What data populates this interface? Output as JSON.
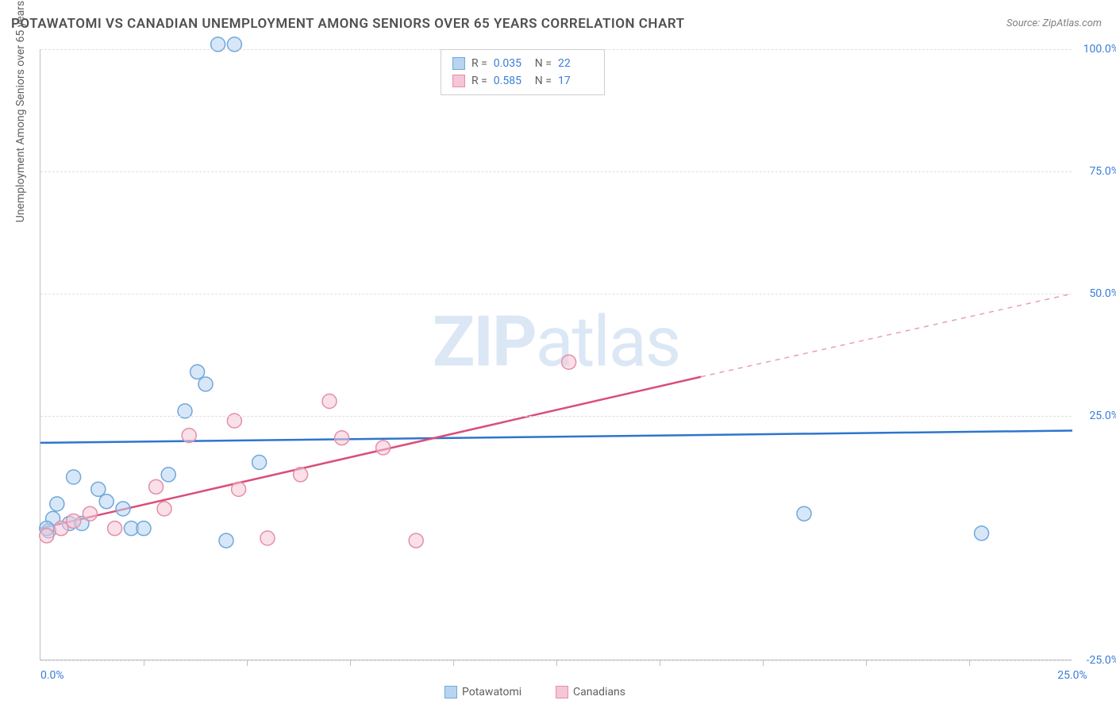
{
  "title": "POTAWATOMI VS CANADIAN UNEMPLOYMENT AMONG SENIORS OVER 65 YEARS CORRELATION CHART",
  "source": "Source: ZipAtlas.com",
  "yaxis_title": "Unemployment Among Seniors over 65 years",
  "watermark": {
    "bold": "ZIP",
    "light": "atlas"
  },
  "chart": {
    "type": "scatter-correlation",
    "xlim": [
      0,
      25
    ],
    "ylim": [
      -25,
      100
    ],
    "xticks": [
      0,
      25
    ],
    "xtick_minor": [
      2.5,
      5,
      7.5,
      10,
      12.5,
      15,
      17.5,
      20,
      22.5
    ],
    "ytick_labels": [
      "100.0%",
      "75.0%",
      "50.0%",
      "25.0%",
      "-25.0%"
    ],
    "ytick_values": [
      100,
      75,
      50,
      25,
      -25
    ],
    "xtick_labels": [
      "0.0%",
      "25.0%"
    ],
    "grid_color": "#e0e0e0",
    "axis_color": "#bfbfbf",
    "background_color": "#ffffff",
    "marker_radius": 9,
    "marker_stroke_width": 1.5,
    "line_width": 2.5,
    "series": [
      {
        "name": "Potawatomi",
        "color_fill": "#b8d4f0",
        "color_stroke": "#6fa8dc",
        "color_line": "#2e75cc",
        "R": "0.035",
        "N": "22",
        "trend": {
          "x1": 0,
          "y1": 19.5,
          "x2": 25,
          "y2": 22.0
        },
        "points": [
          {
            "x": 4.3,
            "y": 101
          },
          {
            "x": 4.7,
            "y": 101
          },
          {
            "x": 3.8,
            "y": 34
          },
          {
            "x": 4.0,
            "y": 31.5
          },
          {
            "x": 3.5,
            "y": 26
          },
          {
            "x": 5.3,
            "y": 15.5
          },
          {
            "x": 3.1,
            "y": 13
          },
          {
            "x": 0.8,
            "y": 12.5
          },
          {
            "x": 1.4,
            "y": 10
          },
          {
            "x": 0.4,
            "y": 7
          },
          {
            "x": 1.6,
            "y": 7.5
          },
          {
            "x": 2.0,
            "y": 6
          },
          {
            "x": 0.3,
            "y": 4
          },
          {
            "x": 0.7,
            "y": 3
          },
          {
            "x": 1.0,
            "y": 3
          },
          {
            "x": 0.2,
            "y": 1.5
          },
          {
            "x": 2.2,
            "y": 2
          },
          {
            "x": 2.5,
            "y": 2
          },
          {
            "x": 4.5,
            "y": -0.5
          },
          {
            "x": 18.5,
            "y": 5
          },
          {
            "x": 22.8,
            "y": 1
          },
          {
            "x": 0.15,
            "y": 2
          }
        ]
      },
      {
        "name": "Canadians",
        "color_fill": "#f5c6d6",
        "color_stroke": "#e38fa9",
        "color_line": "#d94f78",
        "R": "0.585",
        "N": "17",
        "trend": {
          "x1": 0,
          "y1": 2,
          "x2": 16,
          "y2": 33,
          "x_ext": 25,
          "y_ext": 50
        },
        "points": [
          {
            "x": 12.8,
            "y": 36
          },
          {
            "x": 7.0,
            "y": 28
          },
          {
            "x": 7.3,
            "y": 20.5
          },
          {
            "x": 4.7,
            "y": 24
          },
          {
            "x": 3.6,
            "y": 21
          },
          {
            "x": 8.3,
            "y": 18.5
          },
          {
            "x": 6.3,
            "y": 13
          },
          {
            "x": 4.8,
            "y": 10
          },
          {
            "x": 2.8,
            "y": 10.5
          },
          {
            "x": 3.0,
            "y": 6
          },
          {
            "x": 1.2,
            "y": 5
          },
          {
            "x": 0.8,
            "y": 3.5
          },
          {
            "x": 0.5,
            "y": 2
          },
          {
            "x": 0.15,
            "y": 0.5
          },
          {
            "x": 1.8,
            "y": 2
          },
          {
            "x": 5.5,
            "y": 0
          },
          {
            "x": 9.1,
            "y": -0.5
          }
        ]
      }
    ]
  },
  "bottom_legend": [
    {
      "label": "Potawatomi",
      "fill": "#b8d4f0",
      "stroke": "#6fa8dc"
    },
    {
      "label": "Canadians",
      "fill": "#f5c6d6",
      "stroke": "#e38fa9"
    }
  ]
}
